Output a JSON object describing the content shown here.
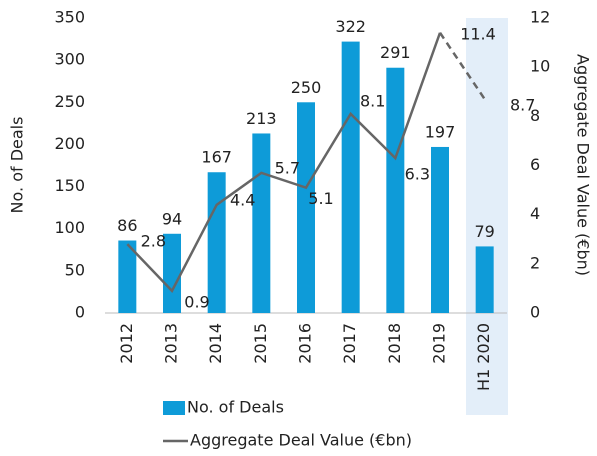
{
  "chart_data": {
    "type": "bar_line",
    "categories": [
      "2012",
      "2013",
      "2014",
      "2015",
      "2016",
      "2017",
      "2018",
      "2019",
      "H1 2020"
    ],
    "series": [
      {
        "name": "No. of Deals",
        "type": "bar",
        "color": "#0e9bd8",
        "values": [
          86,
          94,
          167,
          213,
          250,
          322,
          291,
          197,
          79
        ]
      },
      {
        "name": "Aggregate Deal Value (€bn)",
        "type": "line",
        "axis": "y2",
        "color": "#666666",
        "values": [
          2.8,
          0.9,
          4.4,
          5.7,
          5.1,
          8.1,
          6.3,
          11.4,
          8.7
        ]
      }
    ],
    "ylabel": "No. of Deals",
    "y2label": "Aggregate Deal Value (€bn)",
    "ylim": [
      0,
      350
    ],
    "yticks": [
      0,
      50,
      100,
      150,
      200,
      250,
      300,
      350
    ],
    "y2lim": [
      0,
      12
    ],
    "y2ticks": [
      0,
      2,
      4,
      6,
      8,
      10,
      12
    ],
    "legend": "bottom"
  }
}
